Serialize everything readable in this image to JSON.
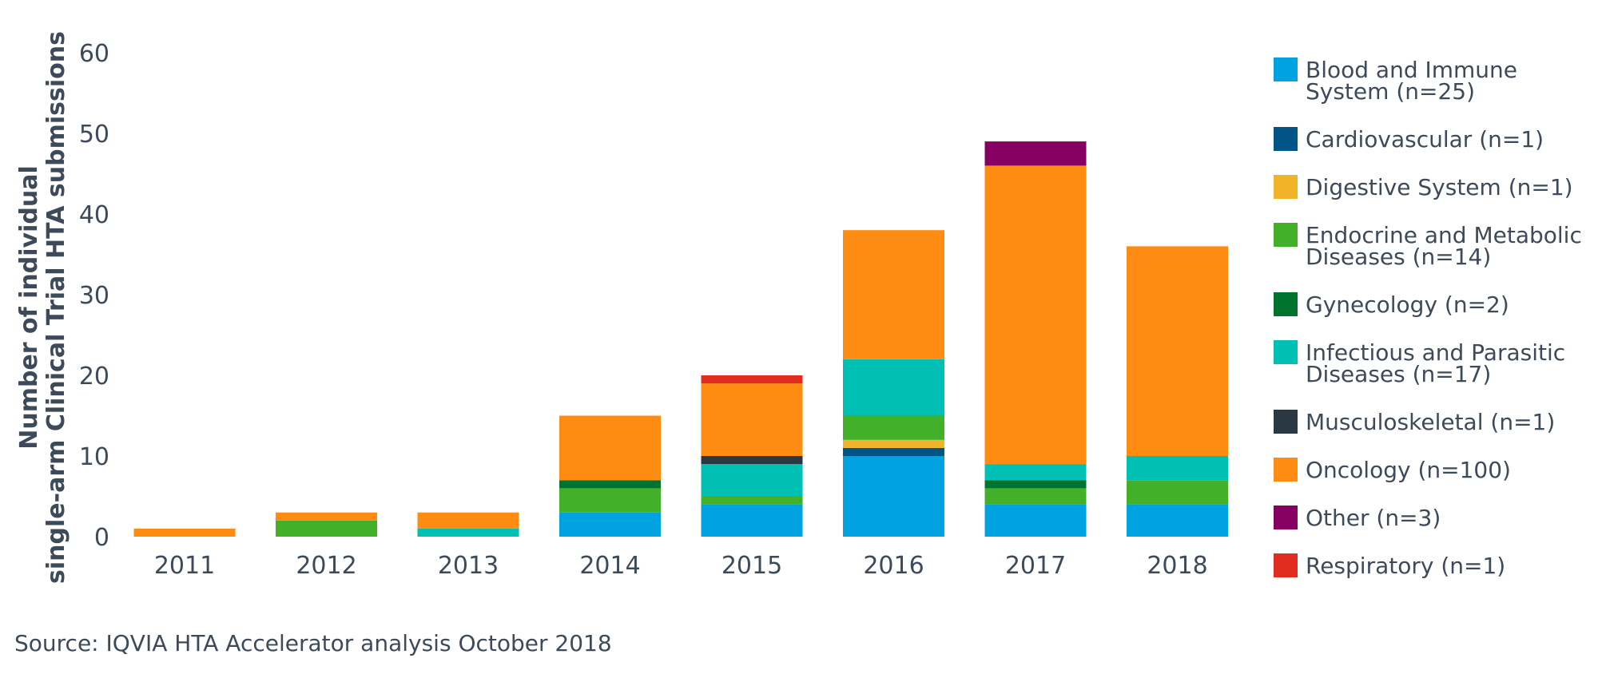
{
  "chart_data": {
    "type": "bar",
    "stacked": true,
    "categories": [
      "2011",
      "2012",
      "2013",
      "2014",
      "2015",
      "2016",
      "2017",
      "2018"
    ],
    "ylabel_lines": [
      "Number of individual",
      "single-arm Clinical Trial HTA submissions"
    ],
    "ylim": [
      0,
      60
    ],
    "yticks": [
      "0",
      "10",
      "20",
      "30",
      "40",
      "50",
      "60"
    ],
    "grid": false,
    "legend_position": "right",
    "series": [
      {
        "name": "Blood and Immune System (n=25)",
        "legend_lines": [
          "Blood and Immune",
          "System (n=25)"
        ],
        "color": "#00a3e0",
        "values": [
          0,
          0,
          0,
          3,
          4,
          10,
          4,
          4
        ]
      },
      {
        "name": "Cardiovascular (n=1)",
        "legend_lines": [
          "Cardiovascular (n=1)"
        ],
        "color": "#005587",
        "values": [
          0,
          0,
          0,
          0,
          0,
          1,
          0,
          0
        ]
      },
      {
        "name": "Digestive System (n=1)",
        "legend_lines": [
          "Digestive System (n=1)"
        ],
        "color": "#f1b32a",
        "values": [
          0,
          0,
          0,
          0,
          0,
          1,
          0,
          0
        ]
      },
      {
        "name": "Endocrine and Metabolic Diseases (n=14)",
        "legend_lines": [
          "Endocrine and Metabolic",
          "Diseases (n=14)"
        ],
        "color": "#43b02a",
        "values": [
          0,
          2,
          0,
          3,
          1,
          3,
          2,
          3
        ]
      },
      {
        "name": "Gynecology (n=2)",
        "legend_lines": [
          "Gynecology (n=2)"
        ],
        "color": "#00732e",
        "values": [
          0,
          0,
          0,
          1,
          0,
          0,
          1,
          0
        ]
      },
      {
        "name": "Infectious and Parasitic Diseases (n=17)",
        "legend_lines": [
          "Infectious and Parasitic",
          "Diseases (n=17)"
        ],
        "color": "#00bfb3",
        "values": [
          0,
          0,
          1,
          0,
          4,
          7,
          2,
          3
        ]
      },
      {
        "name": "Musculoskeletal (n=1)",
        "legend_lines": [
          "Musculoskeletal (n=1)"
        ],
        "color": "#2a3843",
        "values": [
          0,
          0,
          0,
          0,
          1,
          0,
          0,
          0
        ]
      },
      {
        "name": "Oncology (n=100)",
        "legend_lines": [
          "Oncology (n=100)"
        ],
        "color": "#ff8c12",
        "values": [
          1,
          1,
          2,
          8,
          9,
          16,
          37,
          26
        ]
      },
      {
        "name": "Other (n=3)",
        "legend_lines": [
          "Other (n=3)"
        ],
        "color": "#850060",
        "values": [
          0,
          0,
          0,
          0,
          0,
          0,
          3,
          0
        ]
      },
      {
        "name": "Respiratory (n=1)",
        "legend_lines": [
          "Respiratory (n=1)"
        ],
        "color": "#e12d1f",
        "values": [
          0,
          0,
          0,
          0,
          1,
          0,
          0,
          0
        ]
      }
    ]
  },
  "source": "Source: IQVIA HTA Accelerator analysis October 2018"
}
